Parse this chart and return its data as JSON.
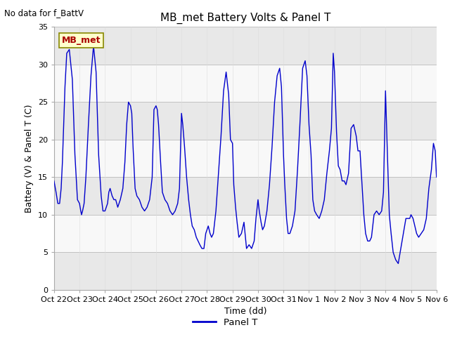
{
  "title": "MB_met Battery Volts & Panel T",
  "no_data_text": "No data for f_BattV",
  "ylabel": "Battery (V) & Panel T (C)",
  "xlabel": "Time (dd)",
  "ylim": [
    0,
    35
  ],
  "legend_label": "Panel T",
  "line_color": "#0000cc",
  "mb_met_label": "MB_met",
  "mb_met_text_color": "#aa0000",
  "mb_met_bg_color": "#ffffcc",
  "mb_met_border_color": "#888800",
  "xtick_labels": [
    "Oct 22",
    "Oct 23",
    "Oct 24",
    "Oct 25",
    "Oct 26",
    "Oct 27",
    "Oct 28",
    "Oct 29",
    "Oct 30",
    "Oct 31",
    "Nov 1",
    "Nov 2",
    "Nov 3",
    "Nov 4",
    "Nov 5",
    "Nov 6"
  ],
  "ytick_values": [
    0,
    5,
    10,
    15,
    20,
    25,
    30,
    35
  ],
  "band_color_light": "#e8e8e8",
  "band_color_white": "#f8f8f8",
  "title_fontsize": 11,
  "axis_label_fontsize": 9,
  "tick_fontsize": 8,
  "panel_t_x": [
    0.0,
    0.08,
    0.15,
    0.22,
    0.28,
    0.33,
    0.38,
    0.43,
    0.5,
    0.6,
    0.72,
    0.82,
    0.92,
    1.0,
    1.0,
    1.05,
    1.08,
    1.12,
    1.18,
    1.25,
    1.35,
    1.45,
    1.55,
    1.65,
    1.75,
    1.85,
    1.92,
    2.0,
    2.0,
    2.05,
    2.1,
    2.15,
    2.2,
    2.28,
    2.35,
    2.42,
    2.5,
    2.6,
    2.7,
    2.78,
    2.85,
    2.92,
    3.0,
    3.0,
    3.05,
    3.1,
    3.18,
    3.25,
    3.35,
    3.45,
    3.55,
    3.65,
    3.75,
    3.85,
    3.92,
    4.0,
    4.0,
    4.05,
    4.1,
    4.18,
    4.25,
    4.35,
    4.45,
    4.55,
    4.65,
    4.75,
    4.85,
    4.92,
    5.0,
    5.0,
    5.05,
    5.12,
    5.2,
    5.28,
    5.35,
    5.42,
    5.5,
    5.58,
    5.65,
    5.72,
    5.8,
    5.88,
    5.95,
    6.0,
    6.0,
    6.05,
    6.12,
    6.18,
    6.25,
    6.35,
    6.45,
    6.55,
    6.65,
    6.75,
    6.85,
    6.92,
    7.0,
    7.0,
    7.05,
    7.12,
    7.18,
    7.25,
    7.35,
    7.45,
    7.55,
    7.65,
    7.75,
    7.85,
    7.92,
    8.0,
    8.0,
    8.05,
    8.12,
    8.18,
    8.25,
    8.35,
    8.45,
    8.55,
    8.65,
    8.75,
    8.85,
    8.92,
    9.0,
    9.0,
    9.05,
    9.12,
    9.18,
    9.25,
    9.35,
    9.45,
    9.55,
    9.65,
    9.75,
    9.85,
    9.92,
    10.0,
    10.0,
    10.08,
    10.15,
    10.22,
    10.3,
    10.4,
    10.5,
    10.6,
    10.7,
    10.8,
    10.88,
    10.95,
    11.0,
    11.0,
    11.08,
    11.15,
    11.22,
    11.3,
    11.38,
    11.45,
    11.55,
    11.65,
    11.75,
    11.85,
    11.92,
    12.0,
    12.0,
    12.08,
    12.15,
    12.22,
    12.3,
    12.38,
    12.45,
    12.55,
    12.65,
    12.75,
    12.85,
    12.92,
    13.0,
    13.0,
    13.08,
    13.15,
    13.22,
    13.3,
    13.4,
    13.5,
    13.6,
    13.7,
    13.8,
    13.88,
    13.95,
    14.0,
    14.0,
    14.08,
    14.15,
    14.22,
    14.3,
    14.4,
    14.5,
    14.6,
    14.7,
    14.8,
    14.88,
    14.95,
    15.0
  ],
  "panel_t_y": [
    14.5,
    13.0,
    11.5,
    11.5,
    13.5,
    17.0,
    22.0,
    27.0,
    31.5,
    32.0,
    28.0,
    18.0,
    12.0,
    11.5,
    11.5,
    10.5,
    10.0,
    10.5,
    11.5,
    15.0,
    22.0,
    28.5,
    32.5,
    29.0,
    18.0,
    12.5,
    10.5,
    10.5,
    10.5,
    11.0,
    11.5,
    13.0,
    13.5,
    12.5,
    12.0,
    12.0,
    11.0,
    12.0,
    13.5,
    17.0,
    22.0,
    25.0,
    24.5,
    24.5,
    23.5,
    19.0,
    13.5,
    12.5,
    12.0,
    11.0,
    10.5,
    11.0,
    12.0,
    15.0,
    24.0,
    24.5,
    24.5,
    24.0,
    22.0,
    17.0,
    13.0,
    12.0,
    11.5,
    10.5,
    10.0,
    10.5,
    11.5,
    13.5,
    23.5,
    23.5,
    22.0,
    19.0,
    15.0,
    12.0,
    10.0,
    8.5,
    8.0,
    7.0,
    6.5,
    6.0,
    5.5,
    5.5,
    7.5,
    8.0,
    8.0,
    8.5,
    7.5,
    7.0,
    7.5,
    10.5,
    15.5,
    20.5,
    26.5,
    29.0,
    26.0,
    20.0,
    19.5,
    19.5,
    14.0,
    11.0,
    9.0,
    7.0,
    7.5,
    9.0,
    5.5,
    6.0,
    5.5,
    6.5,
    9.5,
    12.0,
    12.0,
    10.5,
    9.0,
    8.0,
    8.5,
    10.5,
    14.0,
    19.0,
    25.0,
    28.5,
    29.5,
    27.0,
    18.0,
    18.0,
    14.0,
    9.5,
    7.5,
    7.5,
    8.5,
    10.5,
    16.0,
    22.5,
    29.5,
    30.5,
    28.5,
    22.0,
    22.0,
    18.0,
    12.0,
    10.5,
    10.0,
    9.5,
    10.5,
    12.0,
    15.5,
    18.5,
    21.5,
    31.5,
    29.0,
    29.0,
    21.0,
    16.5,
    16.0,
    14.5,
    14.5,
    14.0,
    15.5,
    21.5,
    22.0,
    20.5,
    18.5,
    18.5,
    18.5,
    14.0,
    10.0,
    7.5,
    6.5,
    6.5,
    7.0,
    10.0,
    10.5,
    10.0,
    10.5,
    13.0,
    26.5,
    26.5,
    17.5,
    10.0,
    7.5,
    5.0,
    4.0,
    3.5,
    5.5,
    7.5,
    9.5,
    9.5,
    9.5,
    10.0,
    10.0,
    9.5,
    8.5,
    7.5,
    7.0,
    7.5,
    8.0,
    9.5,
    13.5,
    16.0,
    19.5,
    18.5,
    15.0
  ]
}
